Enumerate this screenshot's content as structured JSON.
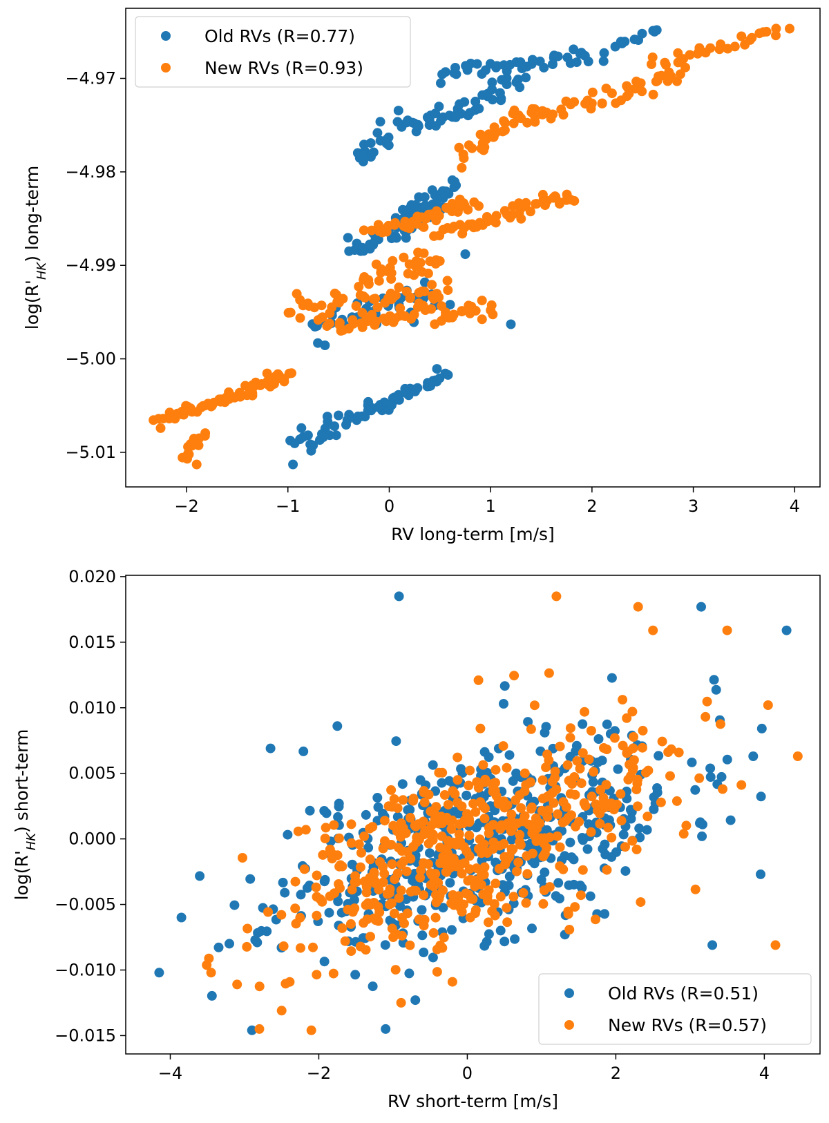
{
  "colors": {
    "old": "#1f77b4",
    "new": "#ff7f0e"
  },
  "chart_data": [
    {
      "type": "scatter",
      "xlabel": "RV long-term [m/s]",
      "ylabel": "log(R'HK) long-term",
      "ylabel_parts": {
        "main": "log(R'",
        "sub": "HK",
        "rest": ") long-term"
      },
      "xlim": [
        -2.6,
        4.25
      ],
      "ylim": [
        -5.0137,
        -4.9625
      ],
      "xticks": [
        -2,
        -1,
        0,
        1,
        2,
        3,
        4
      ],
      "xtick_labels": [
        "−2",
        "−1",
        "0",
        "1",
        "2",
        "3",
        "4"
      ],
      "yticks": [
        -5.01,
        -5.0,
        -4.99,
        -4.98,
        -4.97
      ],
      "ytick_labels": [
        "−5.01",
        "−5.00",
        "−4.99",
        "−4.98",
        "−4.97"
      ],
      "legend_position": "upper-left",
      "series": [
        {
          "name": "Old RVs (R=0.77)",
          "segments": [
            {
              "x0": -0.95,
              "y0": -5.0095,
              "x1": -0.15,
              "y1": -5.0055,
              "n": 30,
              "spread": 0.0012
            },
            {
              "x0": -0.15,
              "y0": -5.0055,
              "x1": 0.55,
              "y1": -5.0015,
              "n": 32,
              "spread": 0.0008
            },
            {
              "x0": -0.8,
              "y0": -4.9965,
              "x1": 0.45,
              "y1": -4.9935,
              "n": 45,
              "spread": 0.0018
            },
            {
              "x0": -0.4,
              "y0": -4.9885,
              "x1": 0.6,
              "y1": -4.9835,
              "n": 45,
              "spread": 0.0015
            },
            {
              "x0": 0.05,
              "y0": -4.9855,
              "x1": 0.65,
              "y1": -4.9815,
              "n": 45,
              "spread": 0.0012
            },
            {
              "x0": -0.35,
              "y0": -4.9785,
              "x1": 0.15,
              "y1": -4.9745,
              "n": 20,
              "spread": 0.0015
            },
            {
              "x0": 0.2,
              "y0": -4.9755,
              "x1": 1.3,
              "y1": -4.9705,
              "n": 45,
              "spread": 0.0015
            },
            {
              "x0": 0.5,
              "y0": -4.9695,
              "x1": 2.1,
              "y1": -4.9675,
              "n": 40,
              "spread": 0.0008
            },
            {
              "x0": 2.2,
              "y0": -4.9665,
              "x1": 2.65,
              "y1": -4.9645,
              "n": 10,
              "spread": 0.0004
            }
          ],
          "points": [
            [
              -0.95,
              -5.0113
            ],
            [
              1.2,
              -4.9963
            ],
            [
              0.75,
              -4.9888
            ],
            [
              0.6,
              -4.9942
            ]
          ]
        },
        {
          "name": "New RVs (R=0.93)",
          "segments": [
            {
              "x0": -2.3,
              "y0": -5.0068,
              "x1": -1.4,
              "y1": -5.0035,
              "n": 40,
              "spread": 0.0007
            },
            {
              "x0": -2.05,
              "y0": -5.0105,
              "x1": -1.85,
              "y1": -5.0078,
              "n": 14,
              "spread": 0.0006
            },
            {
              "x0": -1.4,
              "y0": -5.0035,
              "x1": -1.0,
              "y1": -5.0012,
              "n": 24,
              "spread": 0.0008
            },
            {
              "x0": -1.0,
              "y0": -4.9945,
              "x1": 0.6,
              "y1": -4.9925,
              "n": 50,
              "spread": 0.0015
            },
            {
              "x0": -0.6,
              "y0": -4.9965,
              "x1": 1.0,
              "y1": -4.9945,
              "n": 50,
              "spread": 0.0012
            },
            {
              "x0": -0.3,
              "y0": -4.9915,
              "x1": 0.5,
              "y1": -4.9895,
              "n": 30,
              "spread": 0.0012
            },
            {
              "x0": -0.2,
              "y0": -4.9865,
              "x1": 0.8,
              "y1": -4.9835,
              "n": 45,
              "spread": 0.0008
            },
            {
              "x0": 0.5,
              "y0": -4.9865,
              "x1": 1.8,
              "y1": -4.9825,
              "n": 50,
              "spread": 0.001
            },
            {
              "x0": 0.7,
              "y0": -4.9785,
              "x1": 1.4,
              "y1": -4.9735,
              "n": 30,
              "spread": 0.0012
            },
            {
              "x0": 1.4,
              "y0": -4.9745,
              "x1": 2.9,
              "y1": -4.9695,
              "n": 45,
              "spread": 0.0012
            },
            {
              "x0": 2.6,
              "y0": -4.9685,
              "x1": 3.9,
              "y1": -4.9648,
              "n": 28,
              "spread": 0.0006
            }
          ],
          "points": [
            [
              -1.9,
              -5.0113
            ],
            [
              1.0,
              -4.9948
            ]
          ]
        }
      ]
    },
    {
      "type": "scatter",
      "xlabel": "RV short-term [m/s]",
      "ylabel": "log(R'HK) short-term",
      "ylabel_parts": {
        "main": "log(R'",
        "sub": "HK",
        "rest": ") short-term"
      },
      "xlim": [
        -4.6,
        4.75
      ],
      "ylim": [
        -0.0164,
        0.0201
      ],
      "xticks": [
        -4,
        -2,
        0,
        2,
        4
      ],
      "xtick_labels": [
        "−4",
        "−2",
        "0",
        "2",
        "4"
      ],
      "yticks": [
        -0.015,
        -0.01,
        -0.005,
        0.0,
        0.005,
        0.01,
        0.015,
        0.02
      ],
      "ytick_labels": [
        "−0.015",
        "−0.010",
        "−0.005",
        "0.000",
        "0.005",
        "0.010",
        "0.015",
        "0.020"
      ],
      "legend_position": "lower-right",
      "series": [
        {
          "name": "Old RVs (R=0.51)",
          "cloud": {
            "n": 520,
            "mx": 0.2,
            "sx": 1.35,
            "my": 0.0,
            "sy": 0.0042,
            "r": 0.51,
            "seed": 11
          },
          "points": [
            [
              -0.92,
              0.0185
            ],
            [
              3.15,
              0.0177
            ],
            [
              4.3,
              0.0159
            ],
            [
              -4.15,
              -0.0102
            ],
            [
              -3.85,
              -0.006
            ],
            [
              -2.9,
              -0.0146
            ],
            [
              -1.1,
              -0.0145
            ],
            [
              3.95,
              -0.0027
            ],
            [
              3.3,
              -0.0081
            ],
            [
              3.85,
              0.0063
            ],
            [
              -2.65,
              0.0069
            ],
            [
              -1.75,
              0.0086
            ]
          ]
        },
        {
          "name": "New RVs (R=0.57)",
          "cloud": {
            "n": 520,
            "mx": 0.0,
            "sx": 1.3,
            "my": -0.0005,
            "sy": 0.0042,
            "r": 0.57,
            "seed": 29
          },
          "points": [
            [
              1.2,
              0.0185
            ],
            [
              2.3,
              0.0177
            ],
            [
              2.5,
              0.0159
            ],
            [
              3.5,
              0.0159
            ],
            [
              4.05,
              0.0102
            ],
            [
              4.45,
              0.0063
            ],
            [
              4.15,
              -0.0081
            ],
            [
              -2.1,
              -0.0146
            ],
            [
              -2.5,
              -0.0131
            ],
            [
              -2.8,
              -0.0145
            ],
            [
              -3.45,
              -0.0102
            ],
            [
              -3.1,
              -0.0111
            ],
            [
              0.15,
              0.0121
            ],
            [
              -0.2,
              -0.0109
            ]
          ]
        }
      ]
    }
  ]
}
